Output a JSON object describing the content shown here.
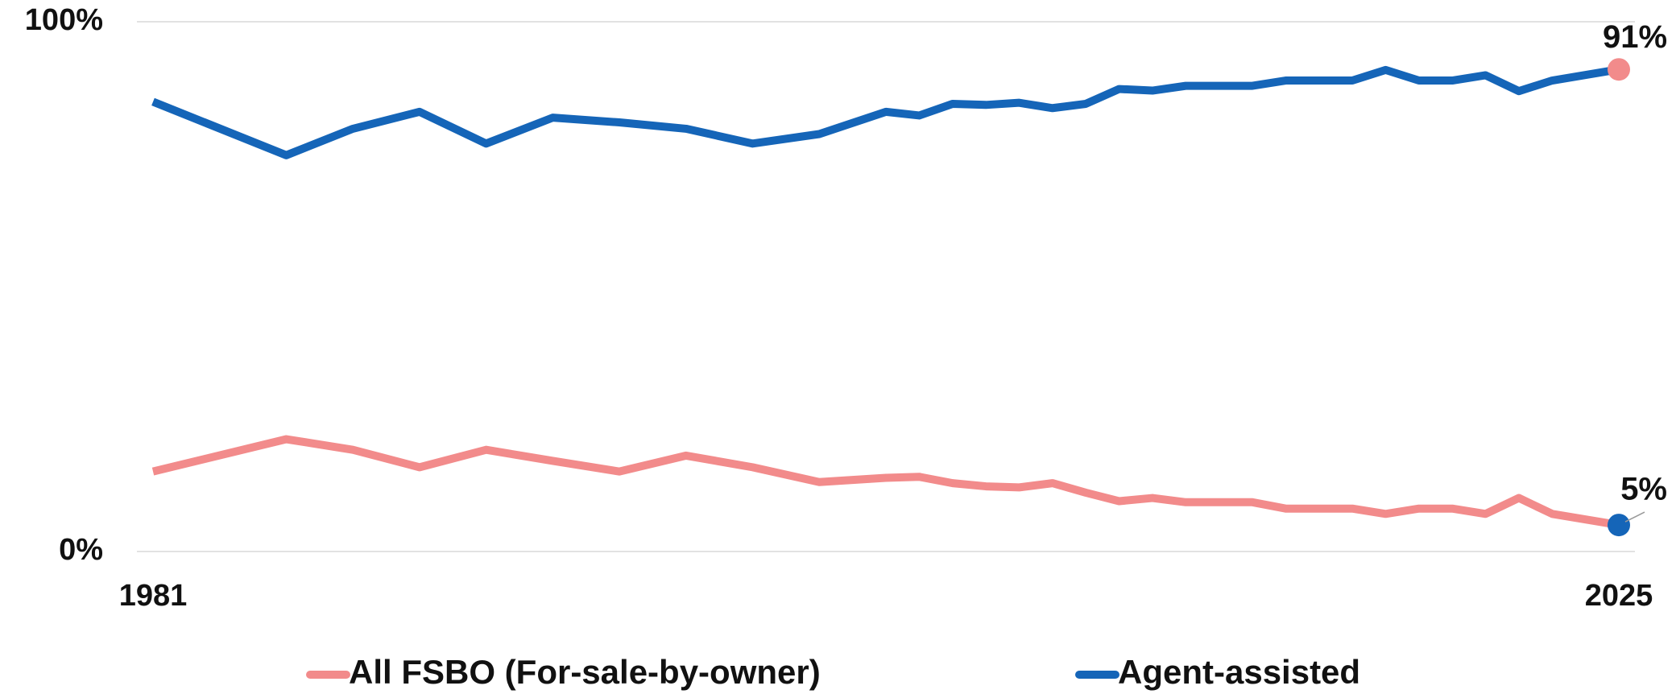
{
  "chart_data": {
    "type": "line",
    "x": [
      1981,
      1985,
      1987,
      1989,
      1991,
      1993,
      1995,
      1997,
      1999,
      2001,
      2003,
      2004,
      2005,
      2006,
      2007,
      2008,
      2009,
      2010,
      2011,
      2012,
      2014,
      2015,
      2017,
      2018,
      2019,
      2020,
      2021,
      2022,
      2023,
      2025
    ],
    "series": [
      {
        "name": "All FSBO (For-sale-by-owner)",
        "color": "#f28b8b",
        "marker_color": "#1565b8",
        "values": [
          15.1,
          21.2,
          19.2,
          15.9,
          19.2,
          17.1,
          15.1,
          18.1,
          15.9,
          13.1,
          13.9,
          14.1,
          12.9,
          12.3,
          12.1,
          12.9,
          11.1,
          9.5,
          10.1,
          9.3,
          9.3,
          8.1,
          8.1,
          7.1,
          8.1,
          8.1,
          7.1,
          10.1,
          7.1,
          5
        ],
        "value_labels": [
          null,
          null,
          null,
          null,
          null,
          null,
          null,
          null,
          null,
          null,
          null,
          null,
          null,
          null,
          null,
          null,
          null,
          null,
          null,
          null,
          null,
          null,
          null,
          null,
          null,
          null,
          null,
          null,
          null,
          "5%"
        ]
      },
      {
        "name": "Agent-assisted",
        "color": "#1565b8",
        "marker_color": "#f28b8b",
        "values": [
          84.9,
          74.8,
          79.8,
          83,
          77,
          81.9,
          81,
          79.8,
          77,
          78.8,
          83,
          82.3,
          84.5,
          84.3,
          84.7,
          83.7,
          84.5,
          87.3,
          87,
          87.9,
          87.9,
          88.9,
          88.9,
          90.9,
          88.9,
          88.9,
          89.9,
          86.9,
          88.9,
          91
        ],
        "value_labels": [
          null,
          null,
          null,
          null,
          null,
          null,
          null,
          null,
          null,
          null,
          null,
          null,
          null,
          null,
          null,
          null,
          null,
          null,
          null,
          null,
          null,
          null,
          null,
          null,
          null,
          null,
          null,
          null,
          null,
          "91%"
        ]
      }
    ],
    "xlim": [
      1981,
      2025
    ],
    "xticks": [
      1981,
      2025
    ],
    "ylim": [
      0,
      100
    ],
    "yticks": [
      {
        "value": 0,
        "label": "0%"
      },
      {
        "value": 100,
        "label": "100%"
      }
    ],
    "grid": true,
    "legend": "bottom"
  }
}
